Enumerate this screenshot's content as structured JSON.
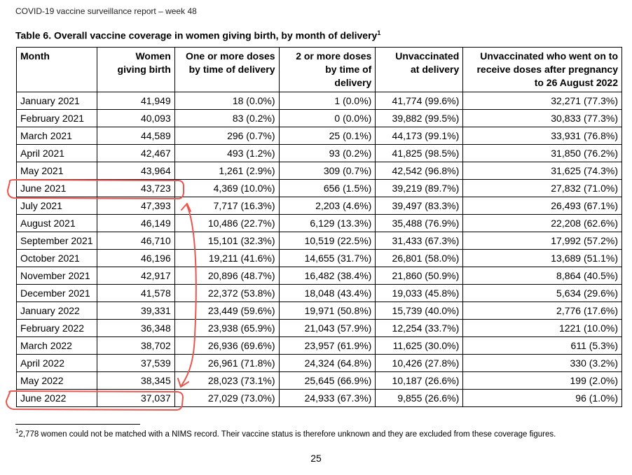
{
  "header": {
    "text": "COVID-19 vaccine surveillance report – week 48"
  },
  "table_title": {
    "text": "Table 6. Overall vaccine coverage in women giving birth, by month of delivery",
    "footnote_marker": "1"
  },
  "table": {
    "headers": [
      {
        "line1": "Month",
        "line2": "",
        "line3": ""
      },
      {
        "line1": "Women",
        "line2": "giving birth",
        "line3": ""
      },
      {
        "line1": "One or more doses",
        "line2": "by time of delivery",
        "line3": ""
      },
      {
        "line1": "2 or more doses",
        "line2": "by time of",
        "line3": "delivery"
      },
      {
        "line1": "Unvaccinated",
        "line2": "at delivery",
        "line3": ""
      },
      {
        "line1": "Unvaccinated who went on to",
        "line2": "receive doses after pregnancy",
        "line3": "to 26 August 2022"
      }
    ],
    "rows": [
      [
        "January 2021",
        "41,949",
        "18 (0.0%)",
        "1 (0.0%)",
        "41,774 (99.6%)",
        "32,271 (77.3%)"
      ],
      [
        "February 2021",
        "40,093",
        "83 (0.2%)",
        "0 (0.0%)",
        "39,882 (99.5%)",
        "30,833 (77.3%)"
      ],
      [
        "March 2021",
        "44,589",
        "296 (0.7%)",
        "25 (0.1%)",
        "44,173 (99.1%)",
        "33,931 (76.8%)"
      ],
      [
        "April 2021",
        "42,467",
        "493 (1.2%)",
        "93 (0.2%)",
        "41,825 (98.5%)",
        "31,850 (76.2%)"
      ],
      [
        "May 2021",
        "43,964",
        "1,261 (2.9%)",
        "309 (0.7%)",
        "42,542 (96.8%)",
        "31,625 (74.3%)"
      ],
      [
        "June 2021",
        "43,723",
        "4,369 (10.0%)",
        "656 (1.5%)",
        "39,219 (89.7%)",
        "27,832 (71.0%)"
      ],
      [
        "July 2021",
        "47,393",
        "7,717 (16.3%)",
        "2,203 (4.6%)",
        "39,497 (83.3%)",
        "26,493 (67.1%)"
      ],
      [
        "August 2021",
        "46,149",
        "10,486 (22.7%)",
        "6,129 (13.3%)",
        "35,488 (76.9%)",
        "22,208 (62.6%)"
      ],
      [
        "September 2021",
        "46,710",
        "15,101 (32.3%)",
        "10,519 (22.5%)",
        "31,433 (67.3%)",
        "17,992 (57.2%)"
      ],
      [
        "October 2021",
        "46,196",
        "19,211 (41.6%)",
        "14,655 (31.7%)",
        "26,801 (58.0%)",
        "13,689 (51.1%)"
      ],
      [
        "November 2021",
        "42,917",
        "20,896 (48.7%)",
        "16,482 (38.4%)",
        "21,860 (50.9%)",
        "8,864 (40.5%)"
      ],
      [
        "December 2021",
        "41,578",
        "22,372 (53.8%)",
        "18,048 (43.4%)",
        "19,033 (45.8%)",
        "5,634 (29.6%)"
      ],
      [
        "January 2022",
        "39,331",
        "23,449 (59.6%)",
        "19,971 (50.8%)",
        "15,739 (40.0%)",
        "2,776 (17.6%)"
      ],
      [
        "February 2022",
        "36,348",
        "23,938 (65.9%)",
        "21,043 (57.9%)",
        "12,254 (33.7%)",
        "1221 (10.0%)"
      ],
      [
        "March 2022",
        "38,702",
        "26,936 (69.6%)",
        "23,957 (61.9%)",
        "11,625 (30.0%)",
        "611 (5.3%)"
      ],
      [
        "April 2022",
        "37,539",
        "26,961 (71.8%)",
        "24,324 (64.8%)",
        "10,426 (27.8%)",
        "330 (3.2%)"
      ],
      [
        "May 2022",
        "38,345",
        "28,023 (73.1%)",
        "25,645 (66.9%)",
        "10,187 (26.6%)",
        "199 (2.0%)"
      ],
      [
        "June 2022",
        "37,037",
        "27,029 (73.0%)",
        "24,933 (67.3%)",
        "9,855 (26.6%)",
        "96 (1.0%)"
      ]
    ],
    "highlighted_rows": [
      "June 2021",
      "June 2022"
    ]
  },
  "footnote": {
    "marker": "1",
    "text": "2,778 women could not be matched with a NIMS record. Their vaccine status is therefore unknown and they are excluded from these coverage figures."
  },
  "page_number": "25",
  "annotation": {
    "color": "#e8564f"
  }
}
